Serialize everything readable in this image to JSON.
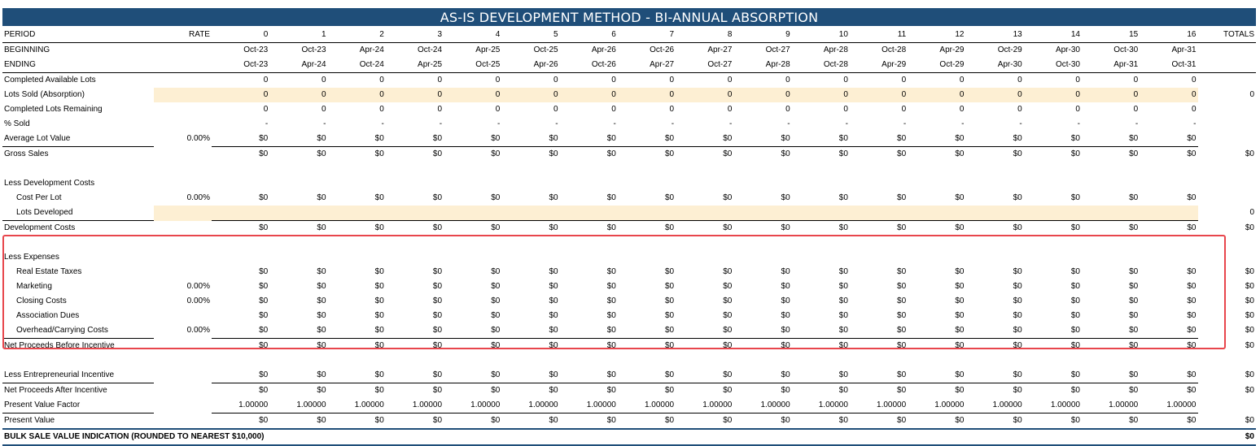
{
  "title": "AS-IS DEVELOPMENT METHOD - BI-ANNUAL ABSORPTION",
  "header": {
    "period_label": "PERIOD",
    "rate_label": "RATE",
    "totals_label": "TOTALS",
    "periods": [
      "0",
      "1",
      "2",
      "3",
      "4",
      "5",
      "6",
      "7",
      "8",
      "9",
      "10",
      "11",
      "12",
      "13",
      "14",
      "15",
      "16"
    ]
  },
  "rows": [
    {
      "label": "BEGINNING",
      "values": [
        "Oct-23",
        "Oct-23",
        "Apr-24",
        "Oct-24",
        "Apr-25",
        "Oct-25",
        "Apr-26",
        "Oct-26",
        "Apr-27",
        "Oct-27",
        "Apr-28",
        "Oct-28",
        "Apr-29",
        "Oct-29",
        "Apr-30",
        "Oct-30",
        "Apr-31"
      ]
    },
    {
      "label": "ENDING",
      "values": [
        "Oct-23",
        "Apr-24",
        "Oct-24",
        "Apr-25",
        "Oct-25",
        "Apr-26",
        "Oct-26",
        "Apr-27",
        "Oct-27",
        "Apr-28",
        "Oct-28",
        "Apr-29",
        "Oct-29",
        "Apr-30",
        "Oct-30",
        "Apr-31",
        "Oct-31"
      ]
    },
    {
      "label": "Completed Available Lots",
      "values": [
        "0",
        "0",
        "0",
        "0",
        "0",
        "0",
        "0",
        "0",
        "0",
        "0",
        "0",
        "0",
        "0",
        "0",
        "0",
        "0",
        "0"
      ]
    },
    {
      "label": "Lots Sold (Absorption)",
      "values": [
        "0",
        "0",
        "0",
        "0",
        "0",
        "0",
        "0",
        "0",
        "0",
        "0",
        "0",
        "0",
        "0",
        "0",
        "0",
        "0",
        "0"
      ],
      "total": "0"
    },
    {
      "label": "Completed Lots Remaining",
      "values": [
        "0",
        "0",
        "0",
        "0",
        "0",
        "0",
        "0",
        "0",
        "0",
        "0",
        "0",
        "0",
        "0",
        "0",
        "0",
        "0",
        "0"
      ]
    },
    {
      "label": "% Sold",
      "values": [
        "-",
        "-",
        "-",
        "-",
        "-",
        "-",
        "-",
        "-",
        "-",
        "-",
        "-",
        "-",
        "-",
        "-",
        "-",
        "-",
        "-"
      ]
    },
    {
      "label": "Average Lot Value",
      "rate": "0.00%",
      "values": [
        "$0",
        "$0",
        "$0",
        "$0",
        "$0",
        "$0",
        "$0",
        "$0",
        "$0",
        "$0",
        "$0",
        "$0",
        "$0",
        "$0",
        "$0",
        "$0",
        "$0"
      ]
    },
    {
      "label": "Gross Sales",
      "values": [
        "$0",
        "$0",
        "$0",
        "$0",
        "$0",
        "$0",
        "$0",
        "$0",
        "$0",
        "$0",
        "$0",
        "$0",
        "$0",
        "$0",
        "$0",
        "$0",
        "$0"
      ],
      "total": "$0"
    },
    {
      "label": "",
      "values": []
    },
    {
      "label": "Less Development Costs",
      "values": []
    },
    {
      "label": "Cost Per Lot",
      "rate": "0.00%",
      "values": [
        "$0",
        "$0",
        "$0",
        "$0",
        "$0",
        "$0",
        "$0",
        "$0",
        "$0",
        "$0",
        "$0",
        "$0",
        "$0",
        "$0",
        "$0",
        "$0",
        "$0"
      ]
    },
    {
      "label": "Lots Developed",
      "values": [
        "",
        "",
        "",
        "",
        "",
        "",
        "",
        "",
        "",
        "",
        "",
        "",
        "",
        "",
        "",
        "",
        ""
      ],
      "total": "0"
    },
    {
      "label": "Development Costs",
      "values": [
        "$0",
        "$0",
        "$0",
        "$0",
        "$0",
        "$0",
        "$0",
        "$0",
        "$0",
        "$0",
        "$0",
        "$0",
        "$0",
        "$0",
        "$0",
        "$0",
        "$0"
      ],
      "total": "$0"
    },
    {
      "label": "",
      "values": []
    },
    {
      "label": "Less Expenses",
      "values": []
    },
    {
      "label": "Real Estate Taxes",
      "values": [
        "$0",
        "$0",
        "$0",
        "$0",
        "$0",
        "$0",
        "$0",
        "$0",
        "$0",
        "$0",
        "$0",
        "$0",
        "$0",
        "$0",
        "$0",
        "$0",
        "$0"
      ],
      "total": "$0"
    },
    {
      "label": "Marketing",
      "rate": "0.00%",
      "values": [
        "$0",
        "$0",
        "$0",
        "$0",
        "$0",
        "$0",
        "$0",
        "$0",
        "$0",
        "$0",
        "$0",
        "$0",
        "$0",
        "$0",
        "$0",
        "$0",
        "$0"
      ],
      "total": "$0"
    },
    {
      "label": "Closing Costs",
      "rate": "0.00%",
      "values": [
        "$0",
        "$0",
        "$0",
        "$0",
        "$0",
        "$0",
        "$0",
        "$0",
        "$0",
        "$0",
        "$0",
        "$0",
        "$0",
        "$0",
        "$0",
        "$0",
        "$0"
      ],
      "total": "$0"
    },
    {
      "label": "Association Dues",
      "values": [
        "$0",
        "$0",
        "$0",
        "$0",
        "$0",
        "$0",
        "$0",
        "$0",
        "$0",
        "$0",
        "$0",
        "$0",
        "$0",
        "$0",
        "$0",
        "$0",
        "$0"
      ],
      "total": "$0"
    },
    {
      "label": "Overhead/Carrying Costs",
      "rate": "0.00%",
      "values": [
        "$0",
        "$0",
        "$0",
        "$0",
        "$0",
        "$0",
        "$0",
        "$0",
        "$0",
        "$0",
        "$0",
        "$0",
        "$0",
        "$0",
        "$0",
        "$0",
        "$0"
      ],
      "total": "$0"
    },
    {
      "label": "Net Proceeds Before Incentive",
      "values": [
        "$0",
        "$0",
        "$0",
        "$0",
        "$0",
        "$0",
        "$0",
        "$0",
        "$0",
        "$0",
        "$0",
        "$0",
        "$0",
        "$0",
        "$0",
        "$0",
        "$0"
      ],
      "total": "$0"
    },
    {
      "label": "",
      "values": []
    },
    {
      "label": "Less Entrepreneurial Incentive",
      "values": [
        "$0",
        "$0",
        "$0",
        "$0",
        "$0",
        "$0",
        "$0",
        "$0",
        "$0",
        "$0",
        "$0",
        "$0",
        "$0",
        "$0",
        "$0",
        "$0",
        "$0"
      ],
      "total": "$0"
    },
    {
      "label": "Net Proceeds After Incentive",
      "values": [
        "$0",
        "$0",
        "$0",
        "$0",
        "$0",
        "$0",
        "$0",
        "$0",
        "$0",
        "$0",
        "$0",
        "$0",
        "$0",
        "$0",
        "$0",
        "$0",
        "$0"
      ],
      "total": "$0"
    },
    {
      "label": "Present Value Factor",
      "values": [
        "1.00000",
        "1.00000",
        "1.00000",
        "1.00000",
        "1.00000",
        "1.00000",
        "1.00000",
        "1.00000",
        "1.00000",
        "1.00000",
        "1.00000",
        "1.00000",
        "1.00000",
        "1.00000",
        "1.00000",
        "1.00000",
        "1.00000"
      ]
    },
    {
      "label": "Present Value",
      "values": [
        "$0",
        "$0",
        "$0",
        "$0",
        "$0",
        "$0",
        "$0",
        "$0",
        "$0",
        "$0",
        "$0",
        "$0",
        "$0",
        "$0",
        "$0",
        "$0",
        "$0"
      ],
      "total": "$0"
    },
    {
      "label": "BULK SALE VALUE INDICATION (ROUNDED TO NEAREST $10,000)",
      "values": [],
      "total": "$0"
    }
  ],
  "colors": {
    "title_bg": "#1f4e79",
    "input_highlight": "#fdefd3",
    "focus_box": "#e8464c"
  }
}
